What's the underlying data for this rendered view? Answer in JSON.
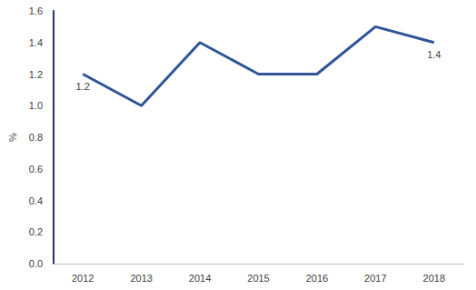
{
  "chart_data": {
    "type": "line",
    "y_label": "%",
    "categories": [
      "2012",
      "2013",
      "2014",
      "2015",
      "2016",
      "2017",
      "2018"
    ],
    "values": [
      1.2,
      1.0,
      1.4,
      1.2,
      1.2,
      1.5,
      1.4
    ],
    "value_labels": [
      "1.2",
      null,
      null,
      null,
      null,
      null,
      "1.4"
    ],
    "data_labels": true,
    "color": "#2f5597",
    "ylim": [
      0,
      1.6
    ],
    "yticks": [
      {
        "value": 0,
        "label": "0.0"
      },
      0.2,
      0.4,
      0.6,
      0.8,
      {
        "value": 1,
        "label": "1.0"
      },
      1.2,
      1.4,
      1.6
    ],
    "grid": false
  }
}
